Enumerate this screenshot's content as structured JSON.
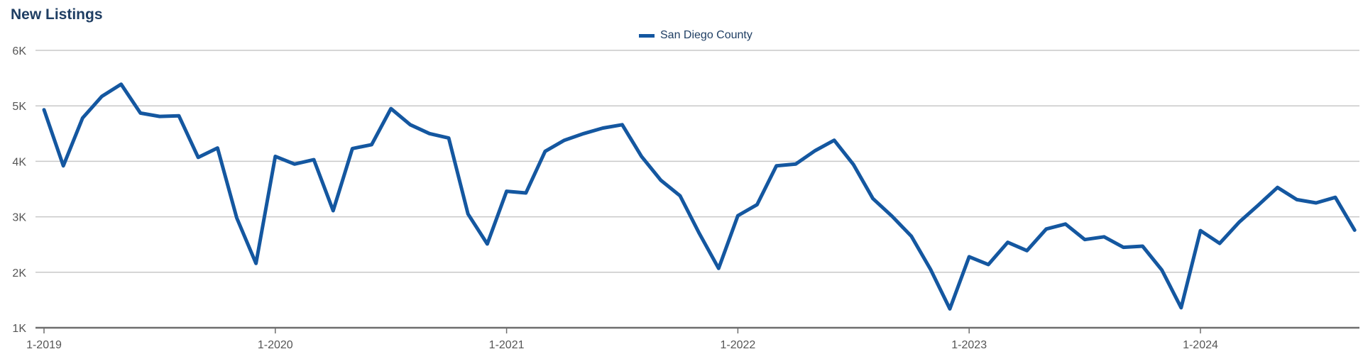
{
  "chart_data": {
    "type": "line",
    "title": "New Listings",
    "xlabel": "",
    "ylabel": "",
    "ylim": [
      1000,
      6000
    ],
    "yticks": [
      {
        "value": 1000,
        "label": "1K"
      },
      {
        "value": 2000,
        "label": "2K"
      },
      {
        "value": 3000,
        "label": "3K"
      },
      {
        "value": 4000,
        "label": "4K"
      },
      {
        "value": 5000,
        "label": "5K"
      },
      {
        "value": 6000,
        "label": "6K"
      }
    ],
    "xticks": [
      {
        "index": 0,
        "label": "1-2019"
      },
      {
        "index": 12,
        "label": "1-2020"
      },
      {
        "index": 24,
        "label": "1-2021"
      },
      {
        "index": 36,
        "label": "1-2022"
      },
      {
        "index": 48,
        "label": "1-2023"
      },
      {
        "index": 60,
        "label": "1-2024"
      }
    ],
    "grid": true,
    "legend_position": "top-center",
    "color": "#1457a0",
    "series": [
      {
        "name": "San Diego County",
        "values": [
          4930,
          3920,
          4780,
          5170,
          5390,
          4870,
          4810,
          4820,
          4070,
          4240,
          2980,
          2160,
          4090,
          3950,
          4030,
          3110,
          4230,
          4300,
          4950,
          4660,
          4500,
          4420,
          3050,
          2510,
          3460,
          3430,
          4180,
          4380,
          4500,
          4600,
          4660,
          4090,
          3660,
          3380,
          2700,
          2070,
          3020,
          3220,
          3920,
          3950,
          4190,
          4380,
          3940,
          3330,
          3010,
          2650,
          2050,
          1340,
          2280,
          2140,
          2540,
          2390,
          2780,
          2870,
          2590,
          2640,
          2450,
          2470,
          2040,
          1360,
          2750,
          2520,
          2900,
          3210,
          3530,
          3310,
          3250,
          3350,
          2760
        ]
      }
    ]
  }
}
